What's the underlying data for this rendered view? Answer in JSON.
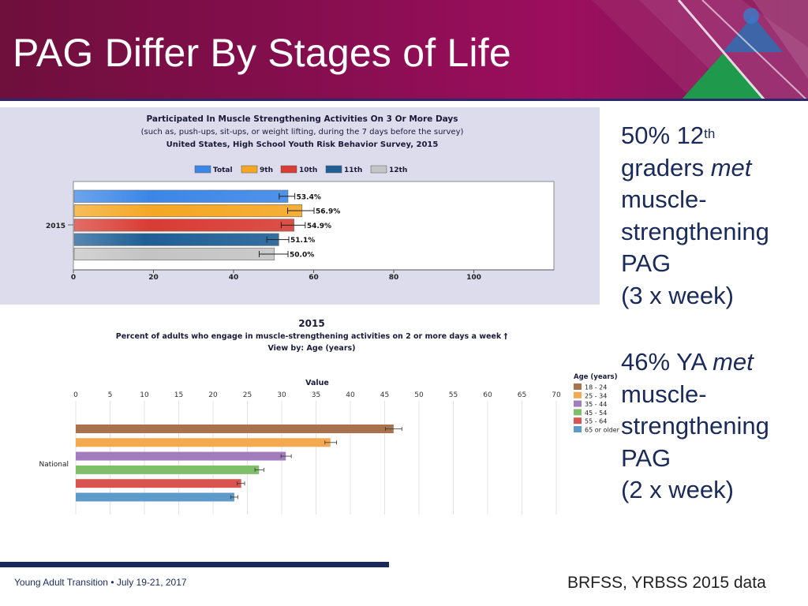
{
  "slide": {
    "title": "PAG Differ By Stages of Life",
    "footer_left": "Young Adult Transition • July 19-21, 2017",
    "footer_right": "BRFSS, YRBSS 2015 data"
  },
  "right_text": {
    "block1": {
      "pct": "50% 12",
      "sup": "th",
      "line2a": "graders ",
      "line2b": "met",
      "line3": "muscle-",
      "line4": "strengthening",
      "line5": "PAG",
      "line6": "(3 x week)"
    },
    "block2": {
      "line1a": "46% YA ",
      "line1b": "met",
      "line2": "muscle-",
      "line3": "strengthening",
      "line4": "PAG",
      "line5": "(2 x week)"
    }
  },
  "chart_data": [
    {
      "type": "bar",
      "orientation": "horizontal",
      "title": "Participated In Muscle Strengthening Activities On 3 Or More Days",
      "subtitle": "(such as, push-ups, sit-ups, or weight lifting, during the 7 days before the survey)",
      "subtitle2": "United States, High School Youth Risk Behavior Survey, 2015",
      "category": "2015",
      "xlim": [
        0,
        120
      ],
      "ticks": [
        0,
        20,
        40,
        60,
        80,
        100
      ],
      "series": [
        {
          "name": "Total",
          "value": 53.4,
          "label": "53.4%",
          "ci": [
            51.4,
            55.3
          ],
          "color": "#3c86e8"
        },
        {
          "name": "9th",
          "value": 56.9,
          "label": "56.9%",
          "ci": [
            53.5,
            60.1
          ],
          "color": "#f5a623"
        },
        {
          "name": "10th",
          "value": 54.9,
          "label": "54.9%",
          "ci": [
            51.9,
            57.9
          ],
          "color": "#d83c34"
        },
        {
          "name": "11th",
          "value": 51.1,
          "label": "51.1%",
          "ci": [
            48.3,
            53.8
          ],
          "color": "#1f5f96"
        },
        {
          "name": "12th",
          "value": 50.0,
          "label": "50.0%",
          "ci": [
            46.4,
            53.6
          ],
          "color": "#c4c4c4"
        }
      ]
    },
    {
      "type": "bar",
      "orientation": "horizontal",
      "year": "2015",
      "title": "Percent of adults who engage in muscle-strengthening activities on 2 or more days a week †",
      "subtitle": "View by: Age (years)",
      "axis_label": "Value",
      "category": "National",
      "xlim": [
        0,
        70
      ],
      "ticks": [
        0,
        5,
        10,
        15,
        20,
        25,
        30,
        35,
        40,
        45,
        50,
        55,
        60,
        65,
        70
      ],
      "legend_title": "Age (years)",
      "series": [
        {
          "name": "18 - 24",
          "value": 46.3,
          "ci": [
            45.1,
            47.5
          ],
          "color": "#a8734c"
        },
        {
          "name": "25 - 34",
          "value": 37.1,
          "ci": [
            36.3,
            38.0
          ],
          "color": "#f2a950"
        },
        {
          "name": "35 - 44",
          "value": 30.6,
          "ci": [
            29.9,
            31.4
          ],
          "color": "#a27dbd"
        },
        {
          "name": "45 - 54",
          "value": 26.7,
          "ci": [
            26.1,
            27.4
          ],
          "color": "#7fbf6a"
        },
        {
          "name": "55 - 64",
          "value": 24.1,
          "ci": [
            23.5,
            24.6
          ],
          "color": "#d9534f"
        },
        {
          "name": "65 or older",
          "value": 23.1,
          "ci": [
            22.6,
            23.6
          ],
          "color": "#5c9ac9"
        }
      ]
    }
  ]
}
